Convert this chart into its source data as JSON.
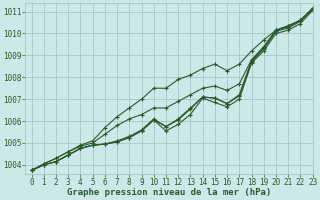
{
  "xlabel": "Graphe pression niveau de la mer (hPa)",
  "ylim": [
    1003.6,
    1011.4
  ],
  "xlim": [
    -0.5,
    23
  ],
  "yticks": [
    1004,
    1005,
    1006,
    1007,
    1008,
    1009,
    1010,
    1011
  ],
  "xticks": [
    0,
    1,
    2,
    3,
    4,
    5,
    6,
    7,
    8,
    9,
    10,
    11,
    12,
    13,
    14,
    15,
    16,
    17,
    18,
    19,
    20,
    21,
    22,
    23
  ],
  "bg_color": "#cce8e8",
  "grid_color": "#a0c0c0",
  "line_color": "#2d5a2d",
  "series": [
    [
      1003.75,
      1004.0,
      1004.15,
      1004.45,
      1004.75,
      1004.9,
      1004.95,
      1005.05,
      1005.25,
      1005.55,
      1006.05,
      1005.55,
      1005.85,
      1006.3,
      1007.05,
      1006.85,
      1006.65,
      1007.0,
      1008.65,
      1009.2,
      1010.0,
      1010.15,
      1010.45,
      1011.05
    ],
    [
      1003.75,
      1004.0,
      1004.15,
      1004.45,
      1004.75,
      1004.9,
      1004.95,
      1005.05,
      1005.25,
      1005.55,
      1006.05,
      1005.75,
      1006.05,
      1006.55,
      1007.1,
      1007.05,
      1006.8,
      1007.15,
      1008.7,
      1009.3,
      1010.1,
      1010.25,
      1010.55,
      1011.1
    ],
    [
      1003.75,
      1004.0,
      1004.15,
      1004.45,
      1004.75,
      1004.9,
      1004.95,
      1005.1,
      1005.3,
      1005.6,
      1006.1,
      1005.75,
      1006.1,
      1006.6,
      1007.1,
      1007.05,
      1006.8,
      1007.2,
      1008.75,
      1009.35,
      1010.15,
      1010.3,
      1010.6,
      1011.15
    ],
    [
      1003.75,
      1004.05,
      1004.3,
      1004.6,
      1004.85,
      1005.0,
      1005.4,
      1005.8,
      1006.1,
      1006.3,
      1006.6,
      1006.6,
      1006.9,
      1007.2,
      1007.5,
      1007.6,
      1007.4,
      1007.7,
      1008.8,
      1009.4,
      1010.15,
      1010.35,
      1010.6,
      1011.1
    ],
    [
      1003.75,
      1004.05,
      1004.3,
      1004.6,
      1004.9,
      1005.1,
      1005.7,
      1006.2,
      1006.6,
      1007.0,
      1007.5,
      1007.5,
      1007.9,
      1008.1,
      1008.4,
      1008.6,
      1008.3,
      1008.6,
      1009.2,
      1009.7,
      1010.15,
      1010.35,
      1010.6,
      1011.15
    ]
  ],
  "marker": "+",
  "markersize": 3,
  "linewidth": 0.8,
  "tick_fontsize": 5.5,
  "label_fontsize": 6.5,
  "label_fontweight": "bold"
}
